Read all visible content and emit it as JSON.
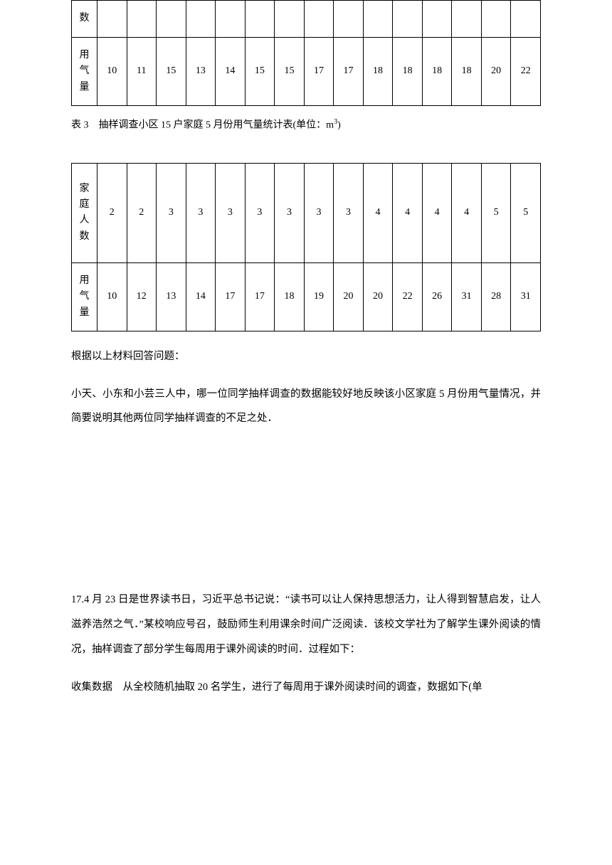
{
  "table1": {
    "row1_label": "数",
    "row2_label_chars": [
      "用",
      "气",
      "量"
    ],
    "values": [
      "10",
      "11",
      "15",
      "13",
      "14",
      "15",
      "15",
      "17",
      "17",
      "18",
      "18",
      "18",
      "18",
      "20",
      "22"
    ]
  },
  "caption1": {
    "prefix": "表 3　抽样调查小区 15 户家庭 5 月份用气量统计表(单位：m",
    "sup": "3",
    "suffix": ")"
  },
  "table2": {
    "row1_label_chars": [
      "家",
      "庭",
      "人",
      "数"
    ],
    "row1_values": [
      "2",
      "2",
      "3",
      "3",
      "3",
      "3",
      "3",
      "3",
      "3",
      "4",
      "4",
      "4",
      "4",
      "5",
      "5"
    ],
    "row2_label_chars": [
      "用",
      "气",
      "量"
    ],
    "row2_values": [
      "10",
      "12",
      "13",
      "14",
      "17",
      "17",
      "18",
      "19",
      "20",
      "20",
      "22",
      "26",
      "31",
      "28",
      "31"
    ]
  },
  "text": {
    "after_tables": "根据以上材料回答问题：",
    "question_p1": "小天、小东和小芸三人中，哪一位同学抽样调查的数据能较好地反映该小区家庭 5 月份用气量情况，并简要说明其他两位同学抽样调查的不足之处．",
    "q17_label": "17.",
    "q17_p1": "4 月 23 日是世界读书日，习近平总书记说：“读书可以让人保持思想活力，让人得到智慧启发，让人滋养浩然之气．”某校响应号召，鼓励师生利用课余时间广泛阅读．该校文学社为了解学生课外阅读的情况，抽样调查了部分学生每周用于课外阅读的时间．过程如下：",
    "q17_p2": "收集数据　从全校随机抽取 20 名学生，进行了每周用于课外阅读时间的调查，数据如下(单"
  }
}
